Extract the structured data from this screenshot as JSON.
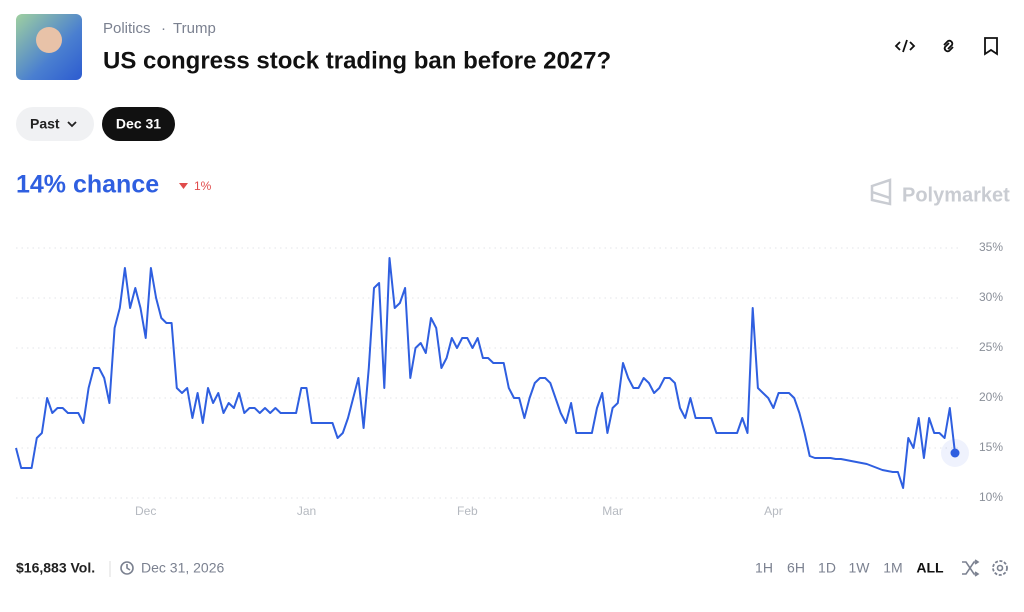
{
  "header": {
    "category": "Politics",
    "separator": "·",
    "tag": "Trump",
    "title": "US congress stock trading ban before 2027?"
  },
  "filters": [
    "Past",
    "Dec 31"
  ],
  "chance": {
    "text": "14% chance",
    "change": "1%"
  },
  "brand": "Polymarket",
  "chart_data": {
    "type": "line",
    "color": "#2f5fe0",
    "grid": true,
    "categories": [
      null,
      null,
      null,
      null,
      null,
      null,
      null,
      null,
      null,
      null,
      null,
      null,
      null,
      null,
      null,
      null,
      null,
      null,
      null,
      null,
      null,
      null,
      null,
      null,
      null,
      "Dec",
      null,
      null,
      null,
      null,
      null,
      null,
      null,
      null,
      null,
      null,
      null,
      null,
      null,
      null,
      null,
      null,
      null,
      null,
      null,
      null,
      null,
      null,
      null,
      null,
      null,
      null,
      null,
      null,
      null,
      null,
      "Jan",
      null,
      null,
      null,
      null,
      null,
      null,
      null,
      null,
      null,
      null,
      null,
      null,
      null,
      null,
      null,
      null,
      null,
      null,
      null,
      null,
      null,
      null,
      null,
      null,
      null,
      null,
      null,
      null,
      null,
      null,
      "Feb",
      null,
      null,
      null,
      null,
      null,
      null,
      null,
      null,
      null,
      null,
      null,
      null,
      null,
      null,
      null,
      null,
      null,
      null,
      null,
      null,
      null,
      null,
      null,
      null,
      null,
      null,
      null,
      "Mar",
      null,
      null,
      null,
      null,
      null,
      null,
      null,
      null,
      null,
      null,
      null,
      null,
      null,
      null,
      null,
      null,
      null,
      null,
      null,
      null,
      null,
      null,
      null,
      null,
      null,
      null,
      null,
      null,
      null,
      null,
      "Apr",
      null,
      null,
      null,
      null,
      null,
      null,
      null,
      null,
      null,
      null,
      null,
      null,
      null,
      null,
      null,
      null,
      null,
      null,
      null,
      null,
      null,
      null,
      null,
      null,
      null,
      null,
      null,
      null,
      null,
      null,
      null,
      null,
      null,
      null,
      null
    ],
    "values": [
      15,
      13,
      13,
      13,
      16,
      16.5,
      20,
      18.5,
      19,
      19,
      18.5,
      18.5,
      18.5,
      17.5,
      21,
      23,
      23,
      22,
      19.5,
      27,
      29,
      33,
      29,
      31,
      29,
      26,
      33,
      30,
      28,
      27.5,
      27.5,
      21,
      20.5,
      21,
      18,
      20.5,
      17.5,
      21,
      19.5,
      20.5,
      18.5,
      19.5,
      19,
      20.5,
      18.5,
      19,
      19,
      18.5,
      19,
      18.5,
      19,
      18.5,
      18.5,
      18.5,
      18.5,
      21,
      21,
      17.5,
      17.5,
      17.5,
      17.5,
      17.5,
      16,
      16.5,
      18,
      20,
      22,
      17,
      23,
      31,
      31.5,
      21,
      34,
      29,
      29.5,
      31,
      22,
      25,
      25.5,
      24.5,
      28,
      27,
      23,
      24,
      26,
      25,
      26,
      26,
      25,
      26,
      24,
      24,
      23.5,
      23.5,
      23.5,
      21,
      20,
      20,
      18,
      20,
      21.5,
      22,
      22,
      21.5,
      20,
      18.5,
      17.5,
      19.5,
      16.5,
      16.5,
      16.5,
      16.5,
      19,
      20.5,
      16.5,
      19,
      19.5,
      23.5,
      22,
      21,
      21,
      22,
      21.5,
      20.5,
      21,
      22,
      22,
      21.5,
      19,
      18,
      20,
      18,
      18,
      18,
      18,
      16.5,
      16.5,
      16.5,
      16.5,
      16.5,
      18,
      16.5,
      29,
      21,
      20.5,
      20,
      19,
      20.5,
      20.5,
      20.5,
      20,
      18.5,
      16.5,
      14.2,
      14,
      14,
      14,
      14,
      13.9,
      13.9,
      13.8,
      13.7,
      13.6,
      13.5,
      13.4,
      13.2,
      13,
      12.8,
      12.7,
      12.6,
      12.6,
      11,
      16,
      15,
      18,
      14,
      18,
      16.5,
      16.5,
      16,
      19,
      14.5
    ],
    "ylim": [
      9,
      36
    ],
    "yticks": [
      {
        "value": 10,
        "label": "10%"
      },
      {
        "value": 15,
        "label": "15%"
      },
      {
        "value": 20,
        "label": "20%"
      },
      {
        "value": 25,
        "label": "25%"
      },
      {
        "value": 30,
        "label": "30%"
      },
      {
        "value": 35,
        "label": "35%"
      }
    ]
  },
  "footer": {
    "volume": "$16,883 Vol.",
    "date": "Dec 31, 2026",
    "ranges": [
      "1H",
      "6H",
      "1D",
      "1W",
      "1M",
      "ALL"
    ]
  }
}
